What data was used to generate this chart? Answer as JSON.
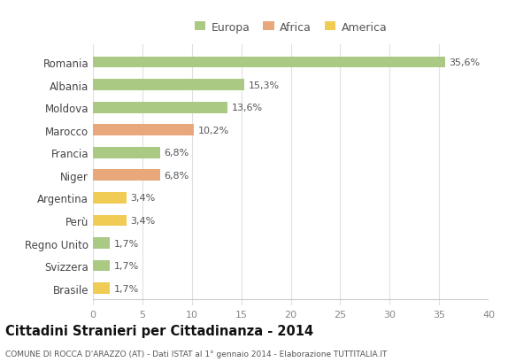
{
  "countries": [
    "Romania",
    "Albania",
    "Moldova",
    "Marocco",
    "Francia",
    "Niger",
    "Argentina",
    "Perù",
    "Regno Unito",
    "Svizzera",
    "Brasile"
  ],
  "values": [
    35.6,
    15.3,
    13.6,
    10.2,
    6.8,
    6.8,
    3.4,
    3.4,
    1.7,
    1.7,
    1.7
  ],
  "labels": [
    "35,6%",
    "15,3%",
    "13,6%",
    "10,2%",
    "6,8%",
    "6,8%",
    "3,4%",
    "3,4%",
    "1,7%",
    "1,7%",
    "1,7%"
  ],
  "continents": [
    "Europa",
    "Europa",
    "Europa",
    "Africa",
    "Europa",
    "Africa",
    "America",
    "America",
    "Europa",
    "Europa",
    "America"
  ],
  "colors": {
    "Europa": "#aaca84",
    "Africa": "#e8a87c",
    "America": "#f0cc55"
  },
  "title": "Cittadini Stranieri per Cittadinanza - 2014",
  "subtitle": "COMUNE DI ROCCA D'ARAZZO (AT) - Dati ISTAT al 1° gennaio 2014 - Elaborazione TUTTITALIA.IT",
  "xlim": [
    0,
    40
  ],
  "xticks": [
    0,
    5,
    10,
    15,
    20,
    25,
    30,
    35,
    40
  ],
  "background_color": "#ffffff",
  "plot_bg_color": "#ffffff",
  "grid_color": "#e0e0e0",
  "bar_height": 0.5,
  "label_fontsize": 8,
  "ytick_fontsize": 8.5,
  "xtick_fontsize": 8
}
